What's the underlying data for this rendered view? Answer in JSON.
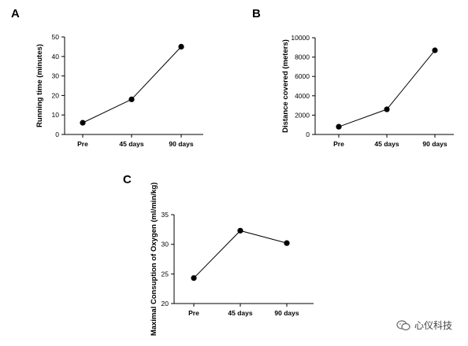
{
  "chart_data": [
    {
      "type": "line",
      "panel": "A",
      "categories": [
        "Pre",
        "45 days",
        "90 days"
      ],
      "values": [
        6,
        18,
        45
      ],
      "ylabel": "Running time (minutes)",
      "xlabel": "",
      "ylim": [
        0,
        50
      ],
      "yticks": [
        "0",
        "10",
        "20",
        "30",
        "40",
        "50"
      ]
    },
    {
      "type": "line",
      "panel": "B",
      "categories": [
        "Pre",
        "45 days",
        "90 days"
      ],
      "values": [
        800,
        2600,
        8700
      ],
      "ylabel": "Distance covered (meters)",
      "xlabel": "",
      "ylim": [
        0,
        10000
      ],
      "yticks": [
        "0",
        "2000",
        "4000",
        "6000",
        "8000",
        "10000"
      ]
    },
    {
      "type": "line",
      "panel": "C",
      "categories": [
        "Pre",
        "45 days",
        "90 days"
      ],
      "values": [
        24.3,
        32.3,
        30.2
      ],
      "ylabel": "Maximal Consuption of Oxygen (ml/min/kg)",
      "xlabel": "",
      "ylim": [
        20,
        35
      ],
      "yticks": [
        "20",
        "25",
        "30",
        "35"
      ]
    }
  ],
  "watermark": {
    "text": "心仪科技",
    "icon": "wechat-icon"
  },
  "colors": {
    "line": "#000000",
    "marker": "#000000"
  }
}
